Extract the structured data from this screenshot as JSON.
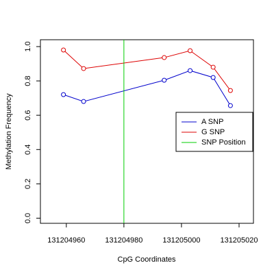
{
  "chart_data": {
    "type": "line",
    "x_label": "CpG Coordinates",
    "y_label": "Methylation Frequency",
    "x": [
      131204959,
      131204966,
      131204994,
      131205003,
      131205011,
      131205017
    ],
    "series": [
      {
        "name": "A SNP",
        "color": "#0000cc",
        "values": [
          0.72,
          0.68,
          0.804,
          0.86,
          0.82,
          0.656
        ]
      },
      {
        "name": "G SNP",
        "color": "#dd0000",
        "values": [
          0.98,
          0.872,
          0.936,
          0.976,
          0.88,
          0.744
        ]
      }
    ],
    "vline": {
      "name": "SNP Position",
      "color": "#00cc00",
      "x": 131204980
    },
    "xlim": [
      131204951,
      131205025
    ],
    "xticks": [
      131204960,
      131204980,
      131205000,
      131205020
    ],
    "ylim": [
      -0.03,
      1.04
    ],
    "yticks": [
      {
        "value": 0,
        "label": "0.0"
      },
      0.2,
      0.4,
      0.6,
      0.8,
      {
        "value": 1,
        "label": "1.0"
      }
    ],
    "legend": "right"
  }
}
